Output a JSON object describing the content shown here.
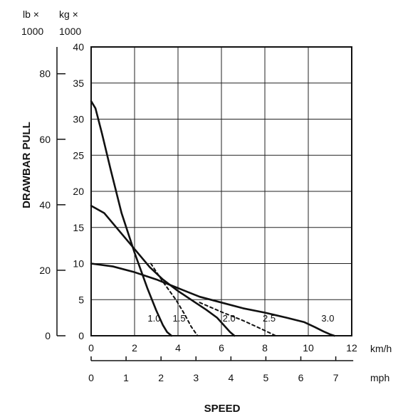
{
  "chart_data": {
    "type": "line",
    "title": "",
    "xlabel": "SPEED",
    "ylabel": "DRAWBAR PULL",
    "x_unit_primary": "km/h",
    "x_unit_secondary": "mph",
    "y_unit_kg_top": "kg ×",
    "y_unit_kg_bottom": "1000",
    "y_unit_lb_top": "lb ×",
    "y_unit_lb_bottom": "1000",
    "xlim": [
      0,
      12
    ],
    "ylim": [
      0,
      40
    ],
    "x_ticks_kmh": [
      "0",
      "2",
      "4",
      "6",
      "8",
      "10",
      "12"
    ],
    "x_ticks_mph": [
      "0",
      "1",
      "2",
      "3",
      "4",
      "5",
      "6",
      "7"
    ],
    "y_ticks_kg": [
      "0",
      "5",
      "10",
      "15",
      "20",
      "25",
      "30",
      "35",
      "40"
    ],
    "y_ticks_lb": [
      "0",
      "20",
      "40",
      "60",
      "80"
    ],
    "grid": true,
    "series": [
      {
        "name": "1.0",
        "style": "solid",
        "x": [
          0,
          0.2,
          0.5,
          0.9,
          1.4,
          2.0,
          2.6,
          3.0,
          3.3,
          3.5,
          3.7
        ],
        "y": [
          32.5,
          31.5,
          28,
          23,
          17,
          11.5,
          6.5,
          3.5,
          1.5,
          0.5,
          0
        ]
      },
      {
        "name": "1.5",
        "style": "dashed",
        "x": [
          2.75,
          3.3,
          3.9,
          4.3,
          4.6,
          4.9
        ],
        "y": [
          10.0,
          7.5,
          5.0,
          3.0,
          1.3,
          0
        ]
      },
      {
        "name": "",
        "style": "solid",
        "x": [
          0,
          0.6,
          1.3,
          2.0,
          2.7,
          3.3,
          4.0,
          4.7,
          5.3,
          5.8,
          6.1,
          6.4,
          6.6
        ],
        "y": [
          18.0,
          17,
          14.5,
          12,
          9.5,
          7.8,
          6.2,
          4.8,
          3.6,
          2.5,
          1.5,
          0.5,
          0
        ]
      },
      {
        "name": "2.0",
        "style": "dashed",
        "x": [
          5.0,
          6.0,
          7.0,
          7.8,
          8.5
        ],
        "y": [
          4.6,
          3.3,
          2.1,
          1.0,
          0
        ]
      },
      {
        "name": "2.5",
        "style": "solid",
        "x": [
          0,
          1.0,
          2.0,
          3.0,
          4.0,
          5.0,
          6.0,
          7.0,
          8.0,
          9.0,
          9.8,
          10.3,
          10.7,
          11.0,
          11.2
        ],
        "y": [
          10.0,
          9.6,
          8.8,
          7.8,
          6.6,
          5.4,
          4.6,
          3.8,
          3.2,
          2.5,
          1.9,
          1.2,
          0.6,
          0.2,
          0
        ]
      }
    ],
    "curve_labels": [
      {
        "text": "1.0",
        "x": 2.9,
        "y": 1.0
      },
      {
        "text": "1.5",
        "x": 4.05,
        "y": 1.0
      },
      {
        "text": "2.0",
        "x": 6.35,
        "y": 1.0
      },
      {
        "text": "2.5",
        "x": 8.2,
        "y": 1.0
      },
      {
        "text": "3.0",
        "x": 10.9,
        "y": 1.0
      }
    ]
  }
}
